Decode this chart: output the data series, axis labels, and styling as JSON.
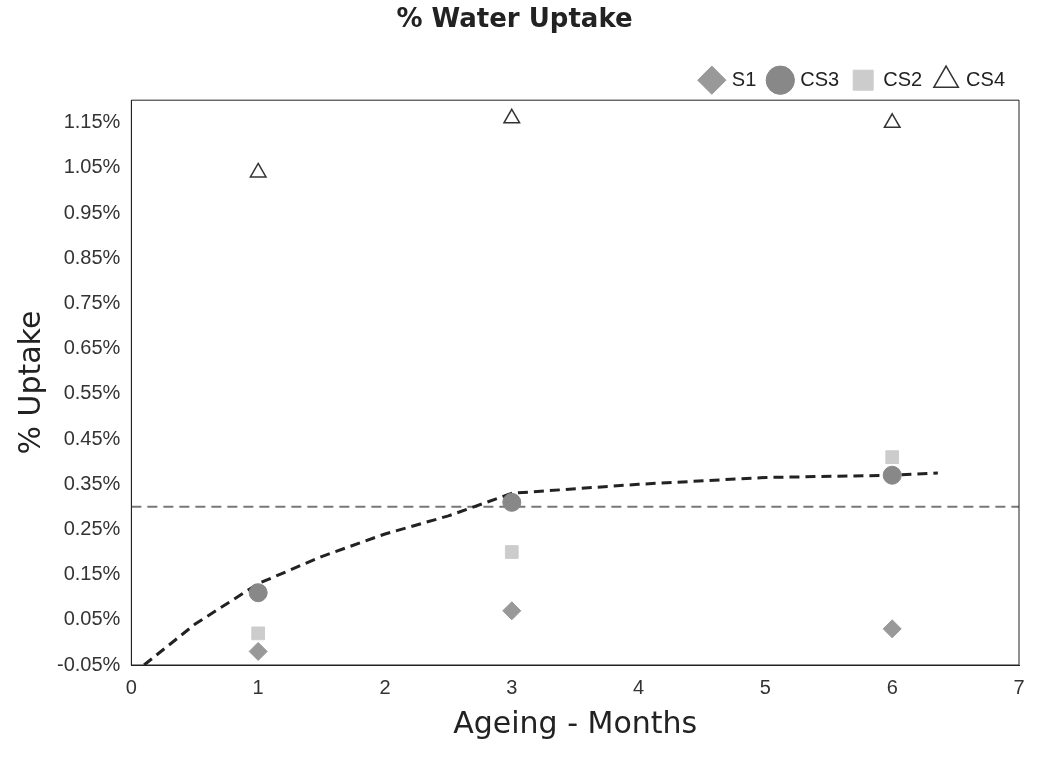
{
  "chart_data": {
    "type": "scatter",
    "title": "% Water Uptake",
    "xlabel": "Ageing - Months",
    "ylabel": "% Uptake",
    "xlim": [
      0,
      7
    ],
    "xticks": [
      0,
      1,
      2,
      3,
      4,
      5,
      6,
      7
    ],
    "ylim": [
      -0.05,
      1.2
    ],
    "yticks": [
      {
        "value": -0.05,
        "label": "-0.05%"
      },
      {
        "value": 0.05,
        "label": "0.05%"
      },
      {
        "value": 0.15,
        "label": "0.15%"
      },
      {
        "value": 0.25,
        "label": "0.25%"
      },
      {
        "value": 0.35,
        "label": "0.35%"
      },
      {
        "value": 0.45,
        "label": "0.45%"
      },
      {
        "value": 0.55,
        "label": "0.55%"
      },
      {
        "value": 0.65,
        "label": "0.65%"
      },
      {
        "value": 0.75,
        "label": "0.75%"
      },
      {
        "value": 0.85,
        "label": "0.85%"
      },
      {
        "value": 0.95,
        "label": "0.95%"
      },
      {
        "value": 1.05,
        "label": "1.05%"
      },
      {
        "value": 1.15,
        "label": "1.15%"
      }
    ],
    "grid": false,
    "legend": "top right",
    "x": [
      1,
      3,
      6
    ],
    "series": [
      {
        "name": "S1",
        "color": "#999999",
        "marker": "diamond",
        "values": [
          -0.02,
          0.07,
          0.03
        ]
      },
      {
        "name": "CS3",
        "color": "#888888",
        "marker": "circle",
        "values": [
          0.11,
          0.31,
          0.37
        ]
      },
      {
        "name": "CS2",
        "color": "#cccccc",
        "marker": "square",
        "values": [
          0.02,
          0.2,
          0.41
        ]
      },
      {
        "name": "CS4",
        "color": "#333333",
        "marker": "triangle",
        "values": [
          1.04,
          1.16,
          1.15
        ]
      },
      {
        "type": "line",
        "color": "#222222",
        "marker": "none",
        "line_style": "dashed",
        "x": [
          0.1,
          0.5,
          1,
          1.5,
          2,
          2.5,
          3,
          4,
          5,
          6,
          6.36
        ],
        "values": [
          -0.05,
          0.04,
          0.13,
          0.19,
          0.24,
          0.28,
          0.33,
          0.35,
          0.365,
          0.37,
          0.375
        ]
      }
    ],
    "ref_lines": [
      {
        "axis": "y",
        "value": 0.3,
        "color": "#777777",
        "line_style": "dashed"
      }
    ]
  }
}
